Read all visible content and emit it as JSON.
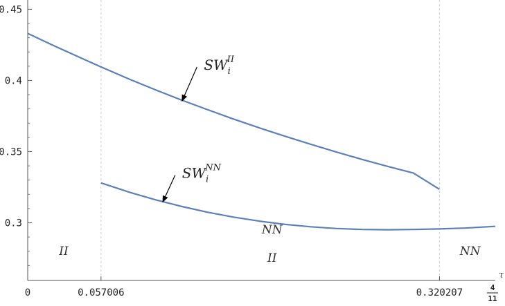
{
  "chart_data": {
    "type": "line",
    "xlabel": "τ",
    "ylabel": "",
    "title": "",
    "xlim": [
      0,
      0.3636
    ],
    "ylim": [
      0.2595,
      0.4565
    ],
    "x_ticks": [
      {
        "value": 0,
        "label": "0"
      },
      {
        "value": 0.057006,
        "label": "0.057006"
      },
      {
        "value": 0.320207,
        "label": "0.320207"
      }
    ],
    "x_end_label": {
      "num": "4",
      "den": "11"
    },
    "y_ticks": [
      {
        "value": 0.3,
        "label": "0.3"
      },
      {
        "value": 0.35,
        "label": "0.35"
      },
      {
        "value": 0.4,
        "label": "0.4"
      },
      {
        "value": 0.45,
        "label": "0.45"
      }
    ],
    "region_dividers": [
      0.057006,
      0.320207
    ],
    "region_labels": [
      {
        "x": 0.028,
        "y": 0.2775,
        "text": "II"
      },
      {
        "x": 0.19,
        "y": 0.2925,
        "text": "NN"
      },
      {
        "x": 0.19,
        "y": 0.2725,
        "text": "II"
      },
      {
        "x": 0.344,
        "y": 0.2775,
        "text": "NN"
      }
    ],
    "series": [
      {
        "name": "SW_i^II",
        "label_base": "SW",
        "label_sub": "i",
        "label_sup": "II",
        "color": "#5b7fb8",
        "x": [
          0,
          0.02,
          0.04,
          0.057006,
          0.08,
          0.1,
          0.12,
          0.14,
          0.16,
          0.18,
          0.2,
          0.22,
          0.24,
          0.26,
          0.28,
          0.3,
          0.320207
        ],
        "y": [
          0.433,
          0.4245,
          0.4163,
          0.4095,
          0.4005,
          0.3932,
          0.3861,
          0.3794,
          0.3729,
          0.3667,
          0.3608,
          0.3552,
          0.3497,
          0.3445,
          0.3396,
          0.3349,
          0.3235
        ]
      },
      {
        "name": "SW_i^NN",
        "label_base": "SW",
        "label_sub": "i",
        "label_sup": "NN",
        "color": "#5b7fb8",
        "x": [
          0.057006,
          0.08,
          0.1,
          0.12,
          0.14,
          0.16,
          0.18,
          0.2,
          0.22,
          0.24,
          0.26,
          0.28,
          0.3,
          0.32,
          0.34,
          0.3636
        ],
        "y": [
          0.328,
          0.3212,
          0.316,
          0.3114,
          0.3074,
          0.304,
          0.3012,
          0.2989,
          0.2972,
          0.296,
          0.2953,
          0.2951,
          0.2953,
          0.2957,
          0.2963,
          0.2975
        ]
      }
    ],
    "annotations": [
      {
        "series": 0,
        "arrow_to": [
          0.12,
          0.3855
        ],
        "text_at": [
          0.137,
          0.4075
        ]
      },
      {
        "series": 1,
        "arrow_to": [
          0.105,
          0.3146
        ],
        "text_at": [
          0.12,
          0.3315
        ]
      }
    ]
  }
}
